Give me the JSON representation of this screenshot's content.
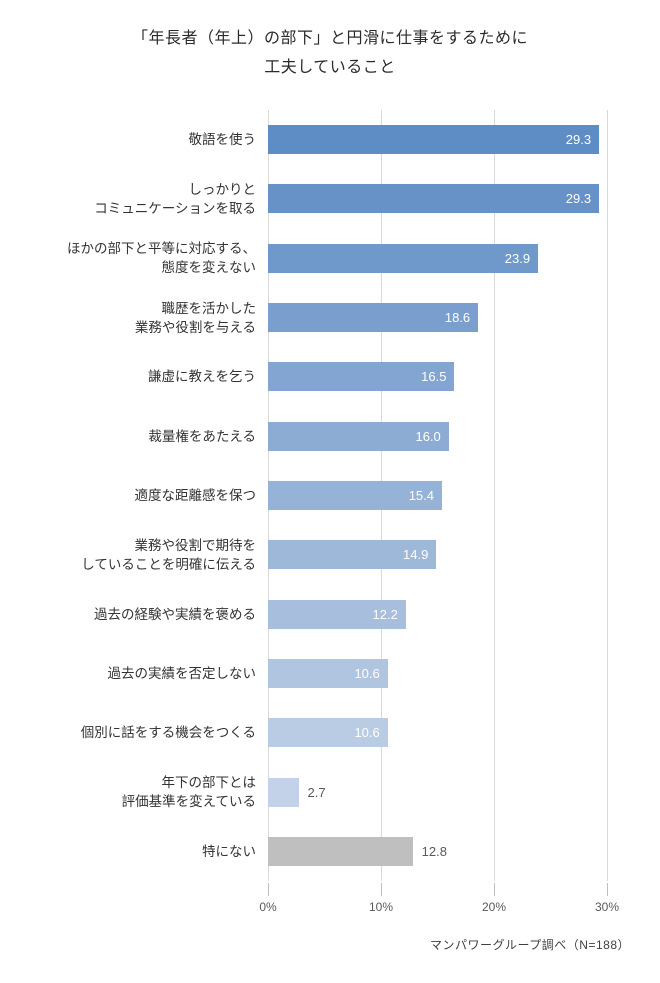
{
  "title": {
    "line1": "「年長者（年上）の部下」と円滑に仕事をするために",
    "line2": "工夫していること"
  },
  "source_note": "マンパワーグループ調べ（N=188）",
  "colors": {
    "grid": "#d9d9d9",
    "tick": "#bfbfbf",
    "axis_text": "#595959",
    "category_text": "#333333",
    "value_label_inside": "#ffffff",
    "value_label_outside": "#595959",
    "bar_blue_start": "#5e8cc4",
    "bar_blue_end": "#c3d2e8",
    "bar_gray": "#bfbfbf",
    "background": "#ffffff"
  },
  "chart_data": {
    "type": "bar",
    "orientation": "horizontal",
    "title": "「年長者（年上）の部下」と円滑に仕事をするために工夫していること",
    "xlabel": "",
    "ylabel": "",
    "unit": "%",
    "xlim": [
      0,
      30
    ],
    "x_ticks": [
      "0%",
      "10%",
      "20%",
      "30%"
    ],
    "x_tick_values": [
      0,
      10,
      20,
      30
    ],
    "grid": true,
    "legend": false,
    "rows": [
      {
        "lines": [
          "敬語を使う"
        ],
        "value": 29.3,
        "value_label": "29.3",
        "label_pos": "inside",
        "color": "#5e8cc4"
      },
      {
        "lines": [
          "しっかりと",
          "コミュニケーションを取る"
        ],
        "value": 29.3,
        "value_label": "29.3",
        "label_pos": "inside",
        "color": "#6792c7"
      },
      {
        "lines": [
          "ほかの部下と平等に対応する、",
          "態度を変えない"
        ],
        "value": 23.9,
        "value_label": "23.9",
        "label_pos": "inside",
        "color": "#7099cb"
      },
      {
        "lines": [
          "職歴を活かした",
          "業務や役割を与える"
        ],
        "value": 18.6,
        "value_label": "18.6",
        "label_pos": "inside",
        "color": "#7a9fce"
      },
      {
        "lines": [
          "謙虚に教えを乞う"
        ],
        "value": 16.5,
        "value_label": "16.5",
        "label_pos": "inside",
        "color": "#83a5d1"
      },
      {
        "lines": [
          "裁量権をあたえる"
        ],
        "value": 16.0,
        "value_label": "16.0",
        "label_pos": "inside",
        "color": "#8cacd4"
      },
      {
        "lines": [
          "適度な距離感を保つ"
        ],
        "value": 15.4,
        "value_label": "15.4",
        "label_pos": "inside",
        "color": "#95b2d7"
      },
      {
        "lines": [
          "業務や役割で期待を",
          "していることを明確に伝える"
        ],
        "value": 14.9,
        "value_label": "14.9",
        "label_pos": "inside",
        "color": "#9eb8da"
      },
      {
        "lines": [
          "過去の経験や実績を褒める"
        ],
        "value": 12.2,
        "value_label": "12.2",
        "label_pos": "inside",
        "color": "#a7bfdd"
      },
      {
        "lines": [
          "過去の実績を否定しない"
        ],
        "value": 10.6,
        "value_label": "10.6",
        "label_pos": "inside",
        "color": "#b0c5e0"
      },
      {
        "lines": [
          "個別に話をする機会をつくる"
        ],
        "value": 10.6,
        "value_label": "10.6",
        "label_pos": "inside",
        "color": "#bacce4"
      },
      {
        "lines": [
          "年下の部下とは",
          "評価基準を変えている"
        ],
        "value": 2.7,
        "value_label": "2.7",
        "label_pos": "outside",
        "color": "#c3d2e8"
      },
      {
        "lines": [
          "特にない"
        ],
        "value": 12.8,
        "value_label": "12.8",
        "label_pos": "outside",
        "color": "#bfbfbf"
      }
    ]
  }
}
